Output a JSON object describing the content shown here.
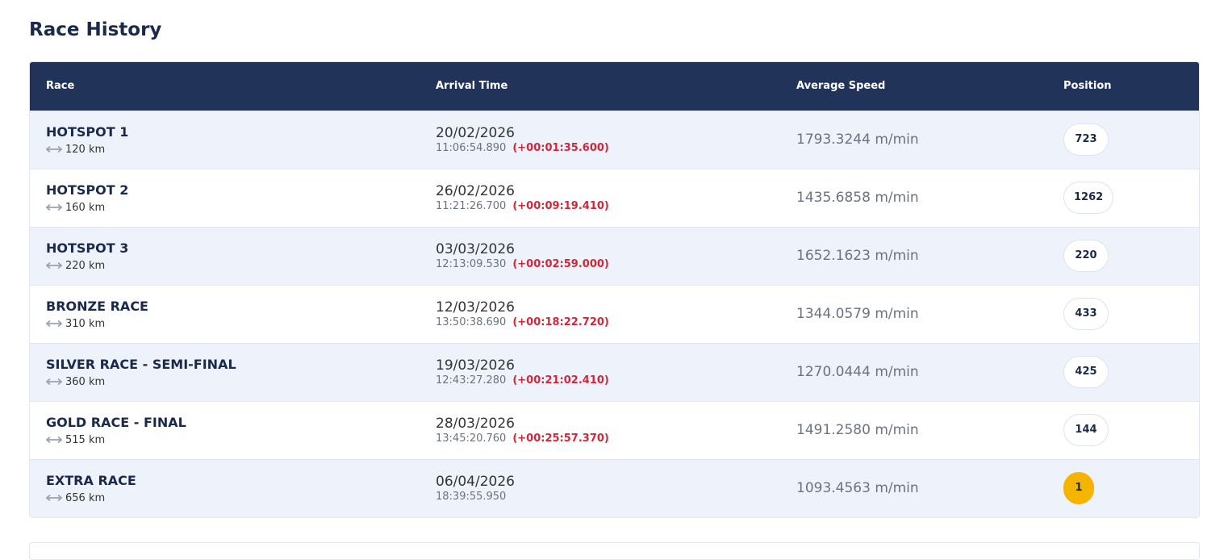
{
  "header": {
    "title": "Race History"
  },
  "table": {
    "columns": [
      "Race",
      "Arrival Time",
      "Average Speed",
      "Position"
    ],
    "rows": [
      {
        "race": "HOTSPOT 1",
        "distance": "120 km",
        "date": "20/02/2026",
        "time": "11:06:54.890",
        "delta": "(+00:01:35.600)",
        "speed": "1793.3244 m/min",
        "position": "723"
      },
      {
        "race": "HOTSPOT 2",
        "distance": "160 km",
        "date": "26/02/2026",
        "time": "11:21:26.700",
        "delta": "(+00:09:19.410)",
        "speed": "1435.6858 m/min",
        "position": "1262"
      },
      {
        "race": "HOTSPOT 3",
        "distance": "220 km",
        "date": "03/03/2026",
        "time": "12:13:09.530",
        "delta": "(+00:02:59.000)",
        "speed": "1652.1623 m/min",
        "position": "220"
      },
      {
        "race": "BRONZE RACE",
        "distance": "310 km",
        "date": "12/03/2026",
        "time": "13:50:38.690",
        "delta": "(+00:18:22.720)",
        "speed": "1344.0579 m/min",
        "position": "433"
      },
      {
        "race": "SILVER RACE - SEMI-FINAL",
        "distance": "360 km",
        "date": "19/03/2026",
        "time": "12:43:27.280",
        "delta": "(+00:21:02.410)",
        "speed": "1270.0444 m/min",
        "position": "425"
      },
      {
        "race": "GOLD RACE - FINAL",
        "distance": "515 km",
        "date": "28/03/2026",
        "time": "13:45:20.760",
        "delta": "(+00:25:57.370)",
        "speed": "1491.2580 m/min",
        "position": "144"
      },
      {
        "race": "EXTRA RACE",
        "distance": "656 km",
        "date": "06/04/2026",
        "time": "18:39:55.950",
        "speed": "1093.4563 m/min",
        "position": "1"
      }
    ]
  }
}
